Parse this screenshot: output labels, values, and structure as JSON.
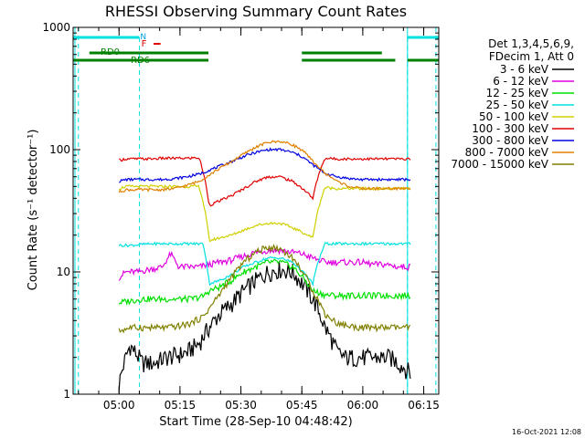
{
  "chart_data": {
    "type": "line",
    "title": "RHESSI Observing Summary Count Rates",
    "xlabel": "Start Time (28-Sep-10 04:48:42)",
    "ylabel": "Count Rate (s⁻¹ detector⁻¹)",
    "x_range_minutes": [
      0,
      90
    ],
    "ylim": [
      1,
      1000
    ],
    "yscale": "log",
    "grid": false,
    "x_ticks": [
      {
        "minute": 11.3,
        "label": "05:00"
      },
      {
        "minute": 26.3,
        "label": "05:15"
      },
      {
        "minute": 41.3,
        "label": "05:30"
      },
      {
        "minute": 56.3,
        "label": "05:45"
      },
      {
        "minute": 71.3,
        "label": "06:00"
      },
      {
        "minute": 86.3,
        "label": "06:15"
      }
    ],
    "y_ticks": [
      {
        "value": 1,
        "label": "1"
      },
      {
        "value": 10,
        "label": "10"
      },
      {
        "value": 100,
        "label": "100"
      },
      {
        "value": 1000,
        "label": "1000"
      }
    ],
    "legend_header": [
      "Det 1,3,4,5,6,9,",
      "FDecim 1, Att 0"
    ],
    "legend_position": "right",
    "footer_date": "16-Oct-2021 12:08",
    "flag_labels": {
      "N": "N",
      "F": "F",
      "RD0": "RD0",
      "RD6": "RD6"
    },
    "night_intervals": [
      [
        0,
        16.3
      ],
      [
        82.3,
        90
      ]
    ],
    "night_dashed_edges": [
      16.3,
      82.3
    ],
    "dashed_edges": [
      1.3,
      89.3
    ],
    "rd_segments": [
      [
        0,
        33.3
      ],
      [
        56.3,
        79.3
      ],
      [
        82.3,
        90
      ]
    ],
    "series": [
      {
        "name": "3 - 6 keV",
        "color": "#000000",
        "x": [
          11.3,
          14,
          17,
          20,
          23,
          26,
          28,
          31,
          33.5,
          36,
          39,
          42,
          45,
          48,
          51,
          54,
          56.5,
          59,
          62,
          65,
          67,
          70,
          73,
          76,
          78,
          81,
          83
        ],
        "y": [
          1.2,
          2.5,
          1.8,
          1.8,
          2,
          2.1,
          2.2,
          2.6,
          3.5,
          4.5,
          5.5,
          7,
          8.5,
          10,
          10.5,
          10,
          8,
          6,
          3.5,
          2.2,
          2,
          2,
          2,
          2,
          2,
          1.7,
          1.5
        ]
      },
      {
        "name": "6 - 12 keV",
        "color": "#e000e0",
        "x": [
          11.3,
          13,
          16,
          19,
          22,
          24,
          26,
          28,
          31,
          33.5,
          36,
          39,
          42,
          45,
          48,
          51,
          54,
          56.5,
          59,
          62,
          65,
          68,
          71,
          74,
          77,
          80,
          83
        ],
        "y": [
          9,
          10,
          10,
          10.5,
          11,
          14,
          11,
          11,
          11,
          11.5,
          12,
          12.5,
          13.5,
          14.5,
          15,
          15,
          14.5,
          14,
          13,
          12,
          12,
          12,
          12,
          11.5,
          11.5,
          11,
          11
        ]
      },
      {
        "name": "12 - 25 keV",
        "color": "#00e000",
        "x": [
          11.3,
          14,
          17,
          20,
          23,
          26,
          29,
          32,
          33.5,
          36,
          39,
          42,
          45,
          48,
          51,
          54,
          56.5,
          59,
          62,
          65,
          68,
          71,
          74,
          77,
          80,
          83
        ],
        "y": [
          5.6,
          5.8,
          6,
          6,
          6,
          6,
          6,
          6.3,
          7,
          7.5,
          8.5,
          10,
          11,
          12,
          12,
          11,
          9,
          7,
          6.5,
          6.4,
          6.4,
          6.4,
          6.4,
          6.4,
          6.4,
          6.4
        ]
      },
      {
        "name": "25 - 50 keV",
        "color": "#00e0e0",
        "x": [
          11.3,
          14,
          17,
          20,
          23,
          26,
          29,
          32,
          33.5,
          36,
          39,
          42,
          45,
          48,
          51,
          54,
          56.5,
          59,
          62,
          65,
          68,
          71,
          74,
          77,
          80,
          83
        ],
        "y": [
          16.5,
          16.5,
          16.8,
          17,
          17,
          17,
          17,
          17,
          8,
          8.5,
          9.5,
          11,
          12,
          13,
          13,
          12,
          10,
          8,
          17,
          17,
          17,
          17,
          17,
          17,
          17,
          17
        ]
      },
      {
        "name": "50 - 100 keV",
        "color": "#d0d000",
        "x": [
          11.3,
          13,
          16,
          19,
          22,
          25,
          28,
          31,
          33.5,
          36,
          39,
          42,
          45,
          48,
          51,
          54,
          56.5,
          59,
          62,
          65,
          68,
          71,
          74,
          77,
          80,
          83
        ],
        "y": [
          48,
          50,
          50,
          50,
          50,
          50,
          50,
          50,
          18,
          19,
          20,
          22,
          24,
          25,
          25,
          23,
          21,
          19,
          49,
          48,
          48,
          48,
          48,
          48,
          48,
          48
        ]
      },
      {
        "name": "100 - 300 keV",
        "color": "#e00000",
        "x": [
          11.3,
          13,
          16,
          19,
          22,
          25,
          28,
          31,
          33.5,
          36,
          39,
          42,
          45,
          48,
          51,
          54,
          56.5,
          59,
          62,
          65,
          68,
          71,
          74,
          77,
          80,
          83
        ],
        "y": [
          82,
          84,
          84,
          84,
          85,
          85,
          85,
          86,
          35,
          38,
          42,
          48,
          55,
          60,
          60,
          55,
          48,
          40,
          85,
          84,
          84,
          84,
          84,
          84,
          84,
          84
        ]
      },
      {
        "name": "300 - 800 keV",
        "color": "#0000e0",
        "x": [
          11.3,
          13,
          16,
          19,
          22,
          25,
          28,
          31,
          33.5,
          36,
          39,
          42,
          45,
          48,
          51,
          54,
          56.5,
          59,
          62,
          65,
          68,
          71,
          74,
          77,
          80,
          83
        ],
        "y": [
          55,
          57,
          57,
          57,
          57,
          58,
          60,
          63,
          68,
          73,
          80,
          88,
          95,
          100,
          100,
          95,
          87,
          75,
          64,
          60,
          58,
          57,
          57,
          57,
          57,
          57
        ]
      },
      {
        "name": "800 - 7000 keV",
        "color": "#e08000",
        "x": [
          11.3,
          13,
          16,
          19,
          22,
          25,
          28,
          31,
          33.5,
          36,
          39,
          42,
          45,
          48,
          51,
          54,
          56.5,
          59,
          62,
          65,
          68,
          71,
          74,
          77,
          80,
          83
        ],
        "y": [
          45,
          47,
          47,
          47,
          47,
          48,
          51,
          55,
          62,
          70,
          80,
          92,
          105,
          115,
          117,
          110,
          98,
          80,
          64,
          55,
          50,
          48,
          48,
          48,
          48,
          48
        ]
      },
      {
        "name": "7000 - 15000 keV",
        "color": "#808000",
        "x": [
          11.3,
          14,
          17,
          20,
          23,
          26,
          29,
          32,
          33.5,
          36,
          39,
          42,
          45,
          48,
          51,
          54,
          56.5,
          59,
          62,
          65,
          68,
          71,
          74,
          77,
          80,
          83
        ],
        "y": [
          3.3,
          3.5,
          3.5,
          3.5,
          3.5,
          3.6,
          3.8,
          4.3,
          5,
          6.5,
          9,
          12,
          14.5,
          16,
          15.5,
          13,
          10,
          7,
          4.5,
          3.8,
          3.6,
          3.5,
          3.5,
          3.5,
          3.5,
          3.5
        ]
      }
    ]
  }
}
